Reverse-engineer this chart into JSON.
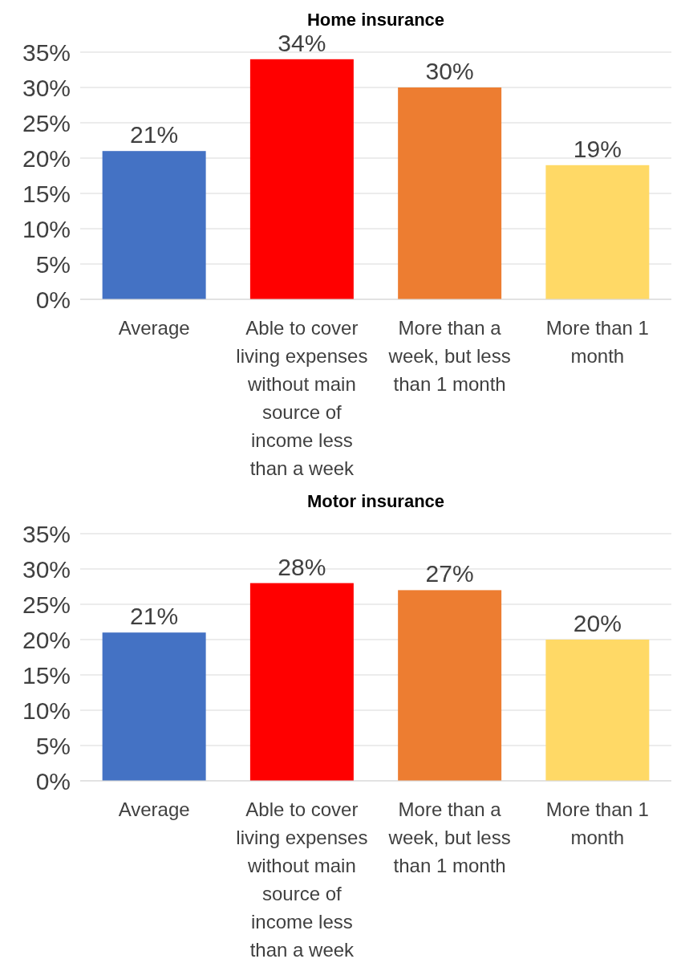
{
  "chart_data": [
    {
      "type": "bar",
      "title": "Home insurance",
      "categories": [
        "Average",
        "Able to cover living expenses without main source of income less than a week",
        "More than a week, but less than 1 month",
        "More than 1 month"
      ],
      "values": [
        21,
        34,
        30,
        19
      ],
      "value_labels": [
        "21%",
        "34%",
        "30%",
        "19%"
      ],
      "colors": [
        "#4472c4",
        "#ff0000",
        "#ed7d31",
        "#ffd966"
      ],
      "ylim": [
        0,
        35
      ],
      "yticks": [
        {
          "value": 0,
          "label": "0%"
        },
        {
          "value": 5,
          "label": "5%"
        },
        {
          "value": 10,
          "label": "10%"
        },
        {
          "value": 15,
          "label": "15%"
        },
        {
          "value": 20,
          "label": "20%"
        },
        {
          "value": 25,
          "label": "25%"
        },
        {
          "value": 30,
          "label": "30%"
        },
        {
          "value": 35,
          "label": "35%"
        }
      ],
      "grid": "y"
    },
    {
      "type": "bar",
      "title": "Motor insurance",
      "categories": [
        "Average",
        "Able to cover living expenses without main source of income less than a week",
        "More than a week, but less than 1 month",
        "More than 1 month"
      ],
      "values": [
        21,
        28,
        27,
        20
      ],
      "value_labels": [
        "21%",
        "28%",
        "27%",
        "20%"
      ],
      "colors": [
        "#4472c4",
        "#ff0000",
        "#ed7d31",
        "#ffd966"
      ],
      "ylim": [
        0,
        35
      ],
      "yticks": [
        {
          "value": 0,
          "label": "0%"
        },
        {
          "value": 5,
          "label": "5%"
        },
        {
          "value": 10,
          "label": "10%"
        },
        {
          "value": 15,
          "label": "15%"
        },
        {
          "value": 20,
          "label": "20%"
        },
        {
          "value": 25,
          "label": "25%"
        },
        {
          "value": 30,
          "label": "30%"
        },
        {
          "value": 35,
          "label": "35%"
        }
      ],
      "grid": "y"
    }
  ]
}
